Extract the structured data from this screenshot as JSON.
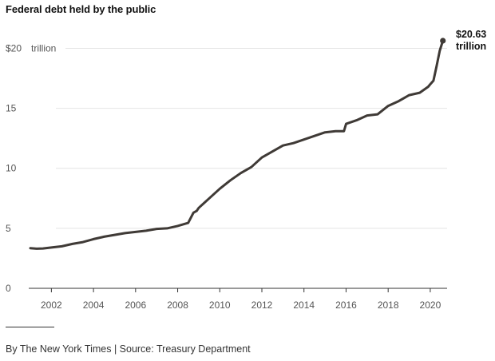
{
  "title": "Federal debt held by the public",
  "footer": "By The New York Times | Source: Treasury Department",
  "colors": {
    "line": "#3f3a36",
    "grid": "#e4e4e4",
    "axis": "#333333",
    "text": "#555555"
  },
  "chart_data": {
    "type": "line",
    "title": "Federal debt held by the public",
    "xlabel": "",
    "ylabel": "",
    "unit": "trillion",
    "xlim": [
      2001.0,
      2020.8
    ],
    "ylim": [
      0,
      20.63
    ],
    "x_ticks": [
      "2002",
      "2004",
      "2006",
      "2008",
      "2010",
      "2012",
      "2014",
      "2016",
      "2018",
      "2020"
    ],
    "y_ticks": [
      {
        "value": 0,
        "label": "0"
      },
      {
        "value": 5,
        "label": "5"
      },
      {
        "value": 10,
        "label": "10"
      },
      {
        "value": 15,
        "label": "15"
      },
      {
        "value": 20,
        "label": "$20",
        "suffix": "trillion"
      }
    ],
    "grid": true,
    "end_annotation": {
      "value_label": "$20.63",
      "unit_label": "trillion"
    },
    "series": [
      {
        "x": [
          2001.0,
          2001.3,
          2001.6,
          2002.0,
          2002.5,
          2003.0,
          2003.5,
          2004.0,
          2004.5,
          2005.0,
          2005.5,
          2006.0,
          2006.5,
          2007.0,
          2007.5,
          2008.0,
          2008.5,
          2008.75,
          2008.9,
          2009.0,
          2009.5,
          2010.0,
          2010.5,
          2011.0,
          2011.5,
          2012.0,
          2012.5,
          2013.0,
          2013.5,
          2014.0,
          2014.5,
          2015.0,
          2015.5,
          2015.9,
          2016.0,
          2016.5,
          2017.0,
          2017.5,
          2018.0,
          2018.5,
          2019.0,
          2019.5,
          2019.9,
          2020.0,
          2020.15,
          2020.3,
          2020.45,
          2020.6
        ],
        "y": [
          3.35,
          3.3,
          3.32,
          3.4,
          3.5,
          3.7,
          3.85,
          4.1,
          4.3,
          4.45,
          4.6,
          4.7,
          4.8,
          4.95,
          5.0,
          5.2,
          5.45,
          6.3,
          6.45,
          6.7,
          7.5,
          8.3,
          9.0,
          9.6,
          10.1,
          10.9,
          11.4,
          11.9,
          12.1,
          12.4,
          12.7,
          13.0,
          13.1,
          13.1,
          13.7,
          14.0,
          14.4,
          14.5,
          15.2,
          15.6,
          16.1,
          16.3,
          16.8,
          17.0,
          17.3,
          18.5,
          19.8,
          20.63
        ]
      }
    ]
  }
}
